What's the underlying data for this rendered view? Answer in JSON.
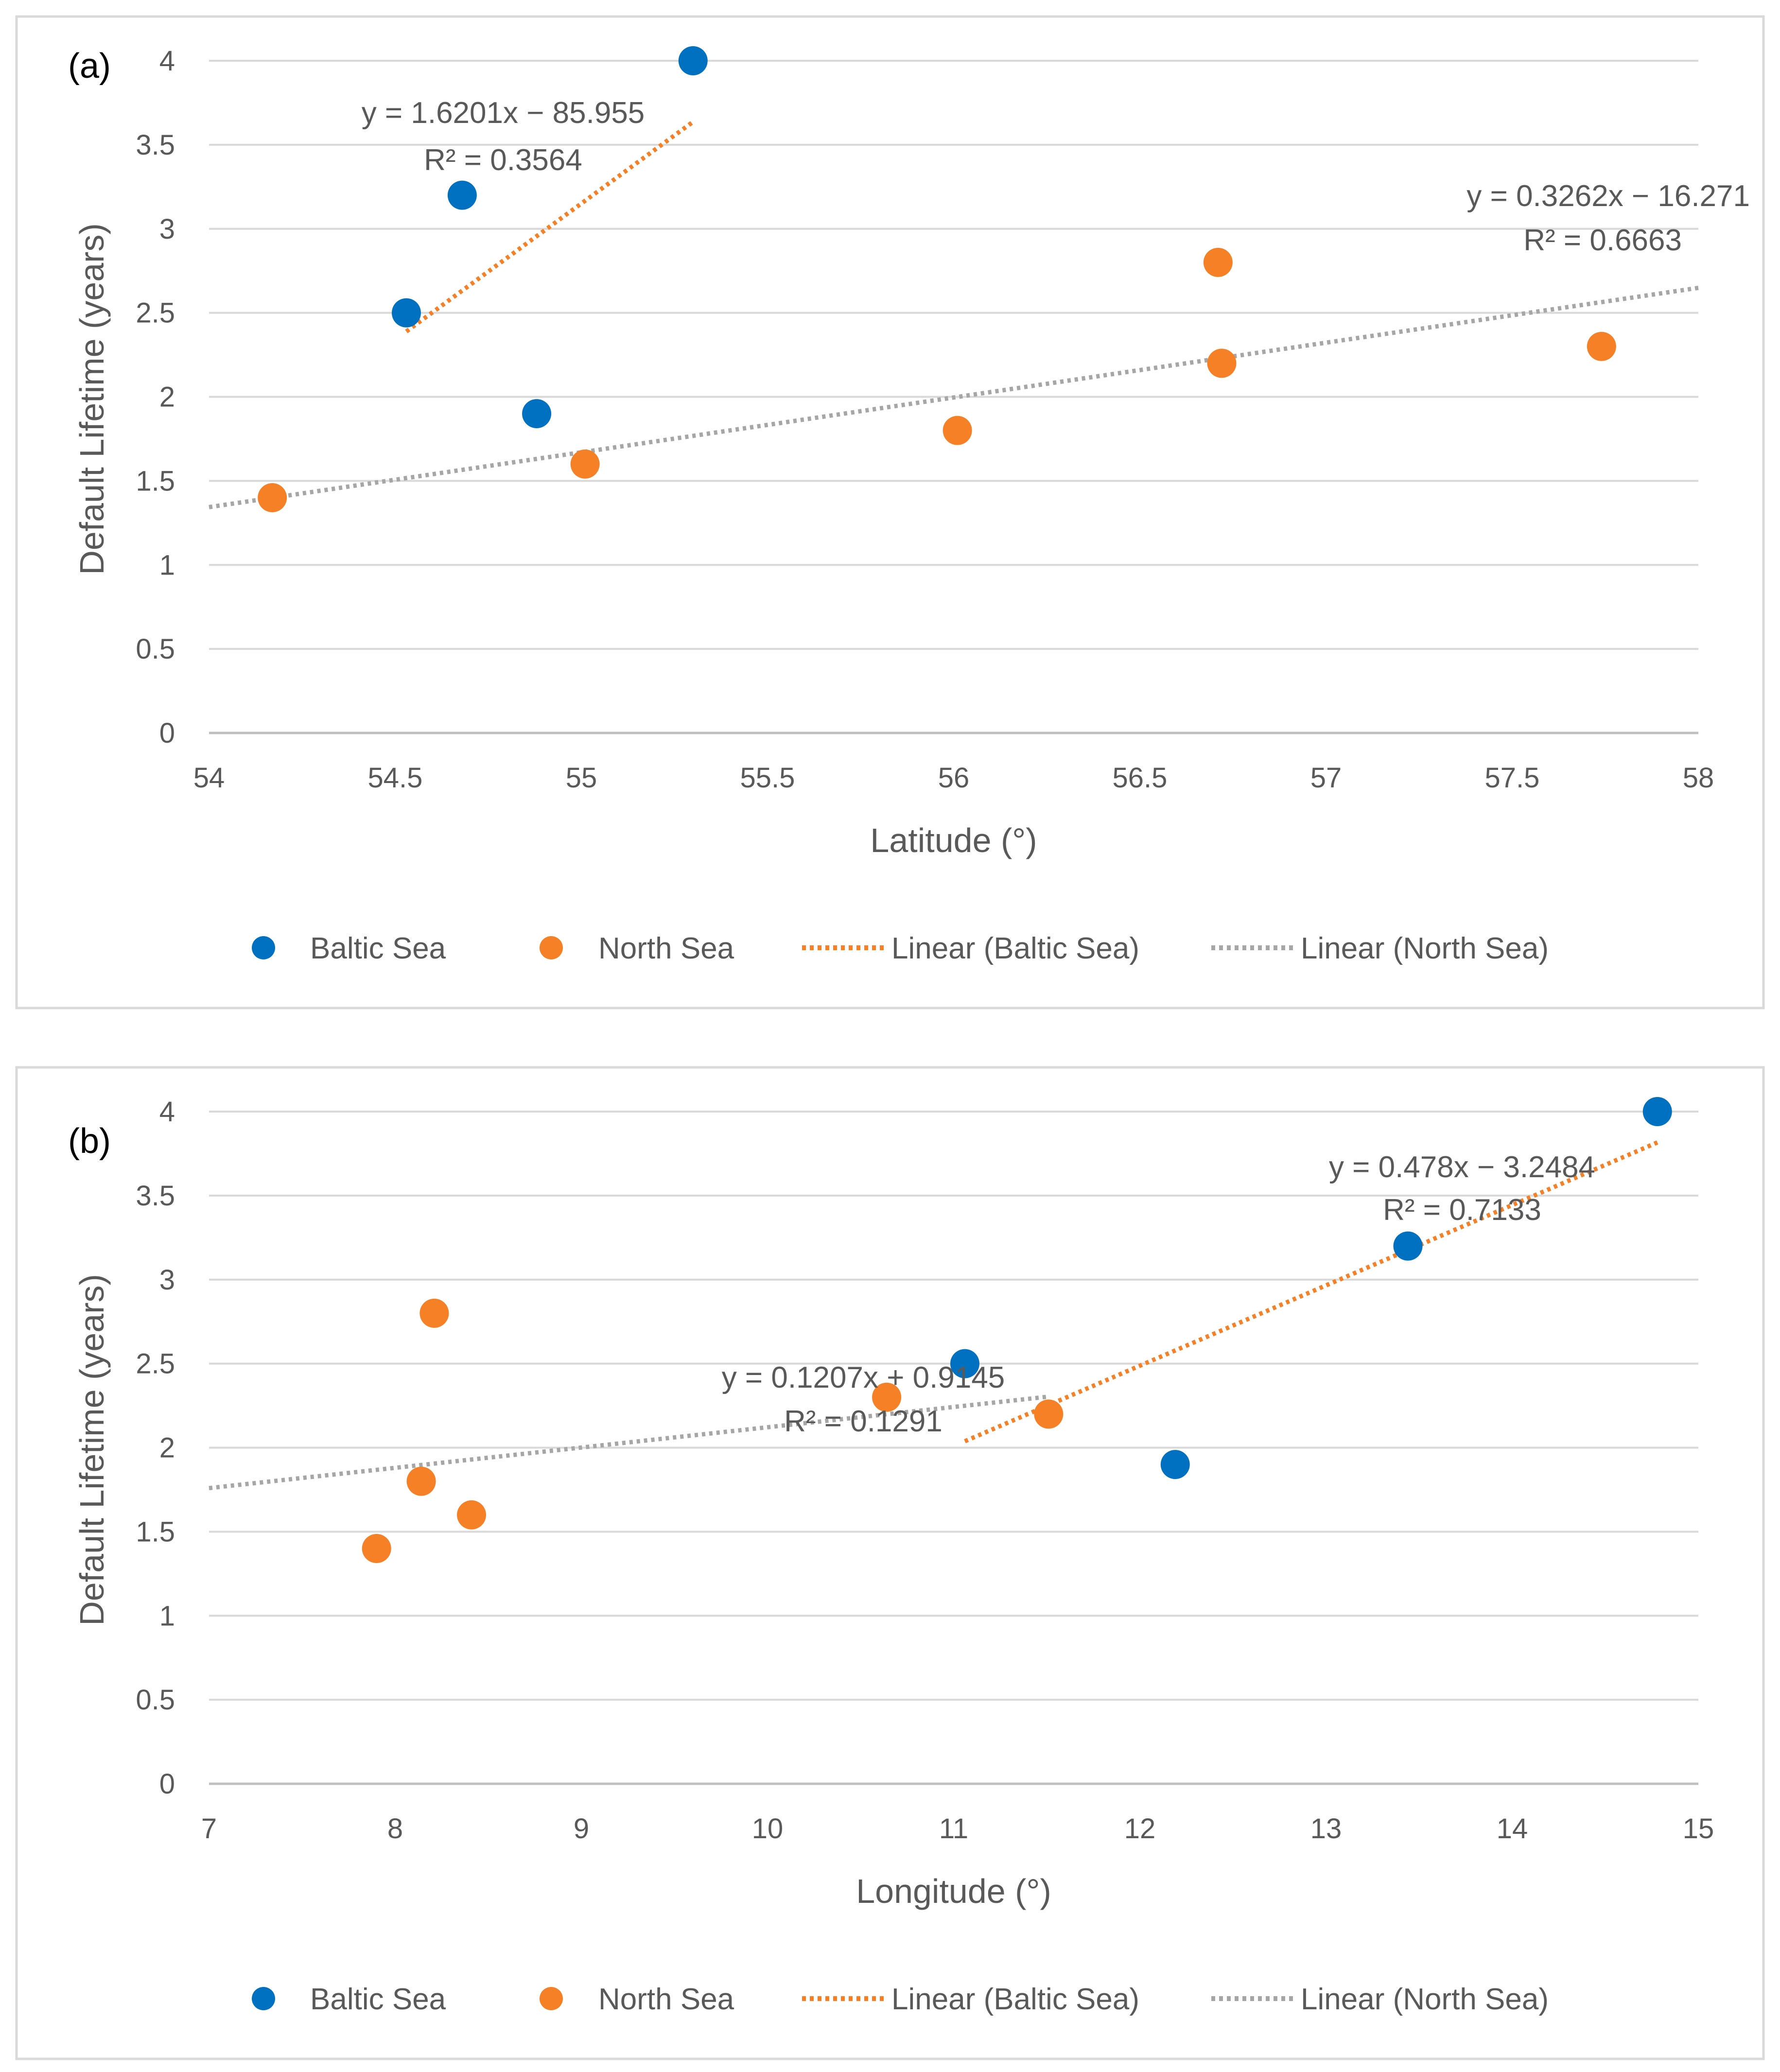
{
  "chart_data": [
    {
      "type": "scatter",
      "panel_label": "(a)",
      "xlabel": "Latitude (°)",
      "ylabel": "Default Lifetime (years)",
      "xlim": [
        54,
        58
      ],
      "ylim": [
        0,
        4
      ],
      "x_ticks": [
        "54",
        "54.5",
        "55",
        "55.5",
        "56",
        "56.5",
        "57",
        "57.5",
        "58"
      ],
      "y_ticks": [
        "0",
        "0.5",
        "1",
        "1.5",
        "2",
        "2.5",
        "3",
        "3.5",
        "4"
      ],
      "grid": "horizontal",
      "legend": "bottom",
      "series": [
        {
          "name": "Baltic Sea",
          "color": "#0070C0",
          "points": [
            [
              54.53,
              2.5
            ],
            [
              54.68,
              3.2
            ],
            [
              54.88,
              1.9
            ],
            [
              55.3,
              4.0
            ]
          ]
        },
        {
          "name": "North Sea",
          "color": "#F58025",
          "points": [
            [
              54.17,
              1.4
            ],
            [
              55.01,
              1.6
            ],
            [
              56.01,
              1.8
            ],
            [
              56.71,
              2.8
            ],
            [
              56.72,
              2.2
            ],
            [
              57.74,
              2.3
            ]
          ]
        }
      ],
      "trendlines": [
        {
          "name": "Linear (Baltic Sea)",
          "color": "#F58025",
          "slope": 1.6201,
          "intercept": -85.955,
          "x_range": [
            54.53,
            55.3
          ],
          "equation": "y = 1.6201x − 85.955",
          "r2": "R² = 0.3564"
        },
        {
          "name": "Linear (North Sea)",
          "color": "#A6A6A6",
          "slope": 0.3262,
          "intercept": -16.271,
          "x_range": [
            54,
            58
          ],
          "equation": "y = 0.3262x − 16.271",
          "r2": "R² = 0.6663"
        }
      ],
      "legend_entries": [
        "Baltic Sea",
        "North Sea",
        "Linear (Baltic Sea)",
        "Linear (North Sea)"
      ]
    },
    {
      "type": "scatter",
      "panel_label": "(b)",
      "xlabel": "Longitude (°)",
      "ylabel": "Default Lifetime (years)",
      "xlim": [
        7,
        15
      ],
      "ylim": [
        0,
        4
      ],
      "x_ticks": [
        "7",
        "8",
        "9",
        "10",
        "11",
        "12",
        "13",
        "14",
        "15"
      ],
      "y_ticks": [
        "0",
        "0.5",
        "1",
        "1.5",
        "2",
        "2.5",
        "3",
        "3.5",
        "4"
      ],
      "grid": "horizontal",
      "legend": "bottom",
      "series": [
        {
          "name": "Baltic Sea",
          "color": "#0070C0",
          "points": [
            [
              11.06,
              2.5
            ],
            [
              12.19,
              1.9
            ],
            [
              13.44,
              3.2
            ],
            [
              14.78,
              4.0
            ]
          ]
        },
        {
          "name": "North Sea",
          "color": "#F58025",
          "points": [
            [
              7.9,
              1.4
            ],
            [
              8.14,
              1.8
            ],
            [
              8.21,
              2.8
            ],
            [
              8.41,
              1.6
            ],
            [
              10.64,
              2.3
            ],
            [
              11.51,
              2.2
            ]
          ]
        }
      ],
      "trendlines": [
        {
          "name": "Linear (Baltic Sea)",
          "color": "#F58025",
          "slope": 0.478,
          "intercept": -3.2484,
          "x_range": [
            11.06,
            14.78
          ],
          "equation": "y = 0.478x − 3.2484",
          "r2": "R² = 0.7133"
        },
        {
          "name": "Linear (North Sea)",
          "color": "#A6A6A6",
          "slope": 0.1207,
          "intercept": 0.9145,
          "x_range": [
            7,
            11.51
          ],
          "equation": "y = 0.1207x + 0.9145",
          "r2": "R² = 0.1291"
        }
      ],
      "legend_entries": [
        "Baltic Sea",
        "North Sea",
        "Linear (Baltic Sea)",
        "Linear (North Sea)"
      ]
    }
  ]
}
